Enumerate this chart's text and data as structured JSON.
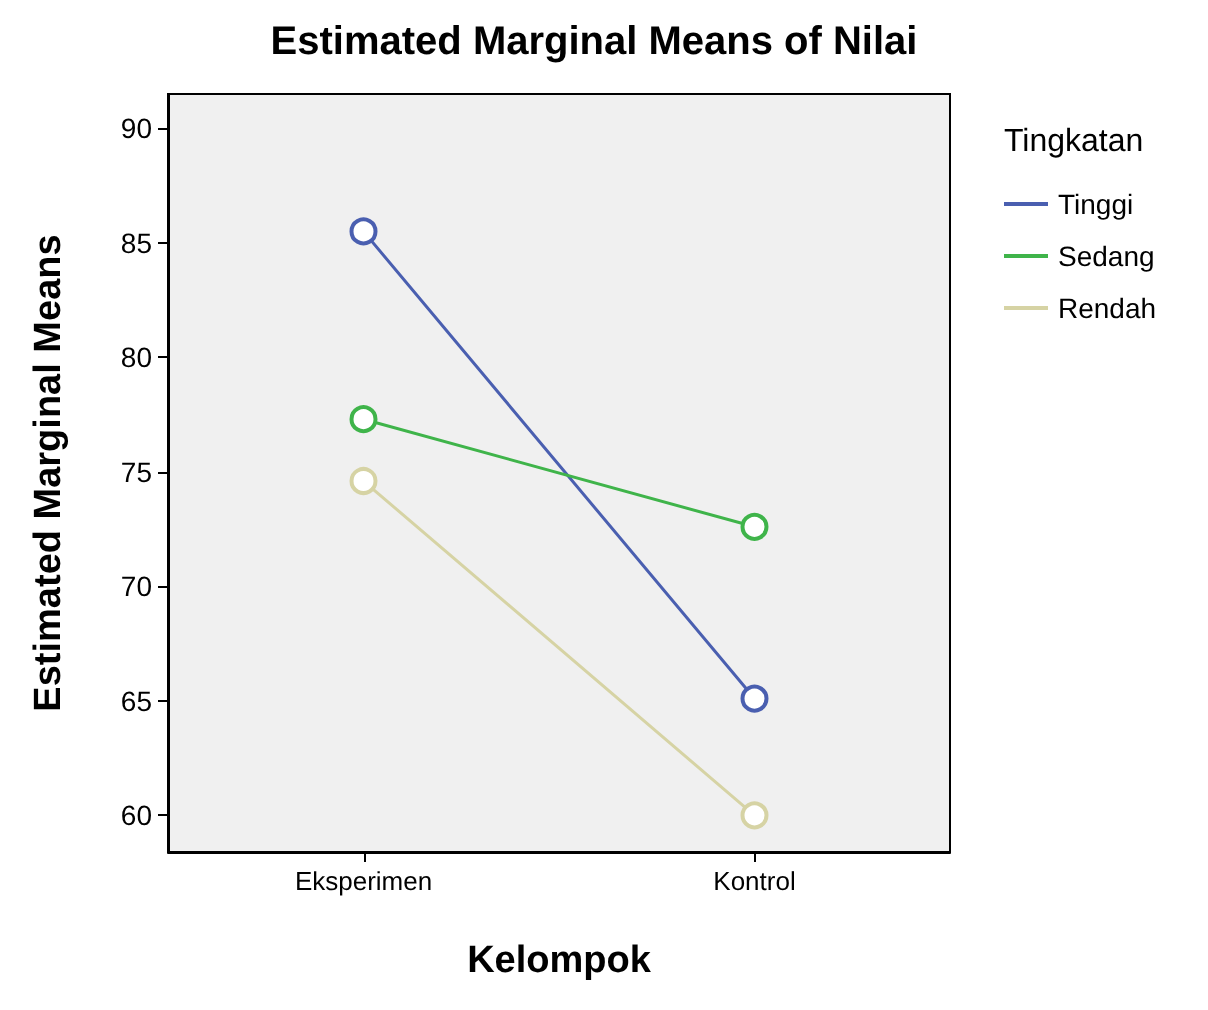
{
  "chart_data": {
    "type": "line",
    "title": "Estimated Marginal Means of Nilai",
    "xlabel": "Kelompok",
    "ylabel": "Estimated Marginal Means",
    "legend_title": "Tingkatan",
    "categories": [
      "Eksperimen",
      "Kontrol"
    ],
    "series": [
      {
        "name": "Tinggi",
        "color": "#4a5fb0",
        "values": [
          85.5,
          65.1
        ]
      },
      {
        "name": "Sedang",
        "color": "#3fb44a",
        "values": [
          77.3,
          72.6
        ]
      },
      {
        "name": "Rendah",
        "color": "#d6d3a4",
        "values": [
          74.6,
          60.0
        ]
      }
    ],
    "ylim": [
      58.4,
      91.5
    ],
    "yticks": [
      60,
      65,
      70,
      75,
      80,
      85,
      90
    ],
    "grid": false,
    "legend": "right",
    "marker": "circle",
    "line_style": "solid"
  }
}
